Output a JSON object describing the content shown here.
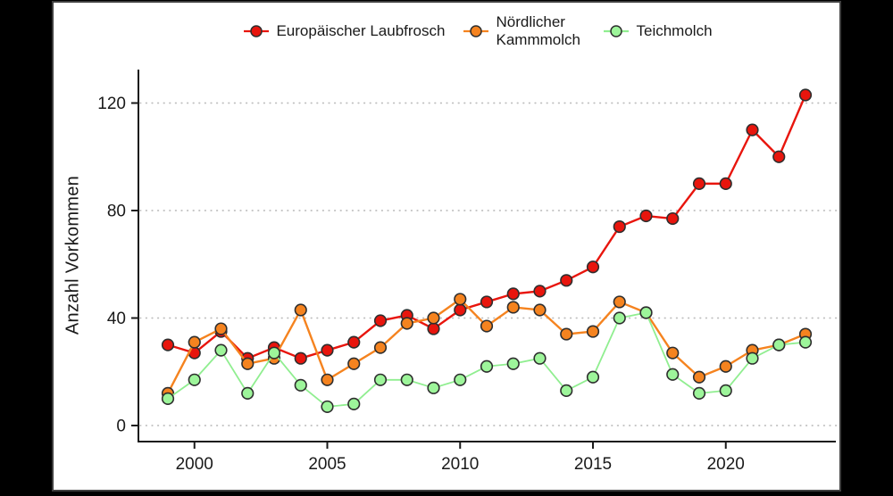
{
  "window": {
    "background": "#000000",
    "card_background": "#ffffff",
    "card_border": "#3f3f3f"
  },
  "chart_data": {
    "type": "line",
    "title": "",
    "xlabel": "",
    "ylabel": "Anzahl Vorkommen",
    "legend_position": "top",
    "grid": "horizontal-dotted",
    "x": [
      1999,
      2000,
      2001,
      2002,
      2003,
      2004,
      2005,
      2006,
      2007,
      2008,
      2009,
      2010,
      2011,
      2012,
      2013,
      2014,
      2015,
      2016,
      2017,
      2018,
      2019,
      2020,
      2021,
      2022,
      2023
    ],
    "xticks": [
      2000,
      2005,
      2010,
      2015,
      2020
    ],
    "yticks": [
      0,
      40,
      80,
      120
    ],
    "ylim": [
      0,
      130
    ],
    "axis_color": "#1a1a1a",
    "grid_color": "#bdbdbd",
    "text_color": "#1a1a1a",
    "marker_stroke": "#2e2e2e",
    "series": [
      {
        "name": "Europäischer Laubfrosch",
        "color": "#e8150d",
        "marker_fill": "#e8150d",
        "line_width": 2.4,
        "values": [
          30,
          27,
          35,
          25,
          29,
          25,
          28,
          31,
          39,
          41,
          36,
          43,
          46,
          49,
          50,
          54,
          59,
          74,
          78,
          77,
          90,
          90,
          110,
          100,
          123
        ]
      },
      {
        "name": "Nördlicher Kammmolch",
        "color": "#f5831f",
        "marker_fill": "#f5831f",
        "line_width": 2.4,
        "values": [
          12,
          31,
          36,
          23,
          25,
          43,
          17,
          23,
          29,
          38,
          40,
          47,
          37,
          44,
          43,
          34,
          35,
          46,
          42,
          27,
          18,
          22,
          28,
          30,
          34
        ]
      },
      {
        "name": "Teichmolch",
        "color": "#90ee90",
        "marker_fill": "#9df59a",
        "line_width": 1.8,
        "values": [
          10,
          17,
          28,
          12,
          27,
          15,
          7,
          8,
          17,
          17,
          14,
          17,
          22,
          23,
          25,
          13,
          18,
          40,
          42,
          19,
          12,
          13,
          25,
          30,
          31
        ]
      }
    ]
  }
}
